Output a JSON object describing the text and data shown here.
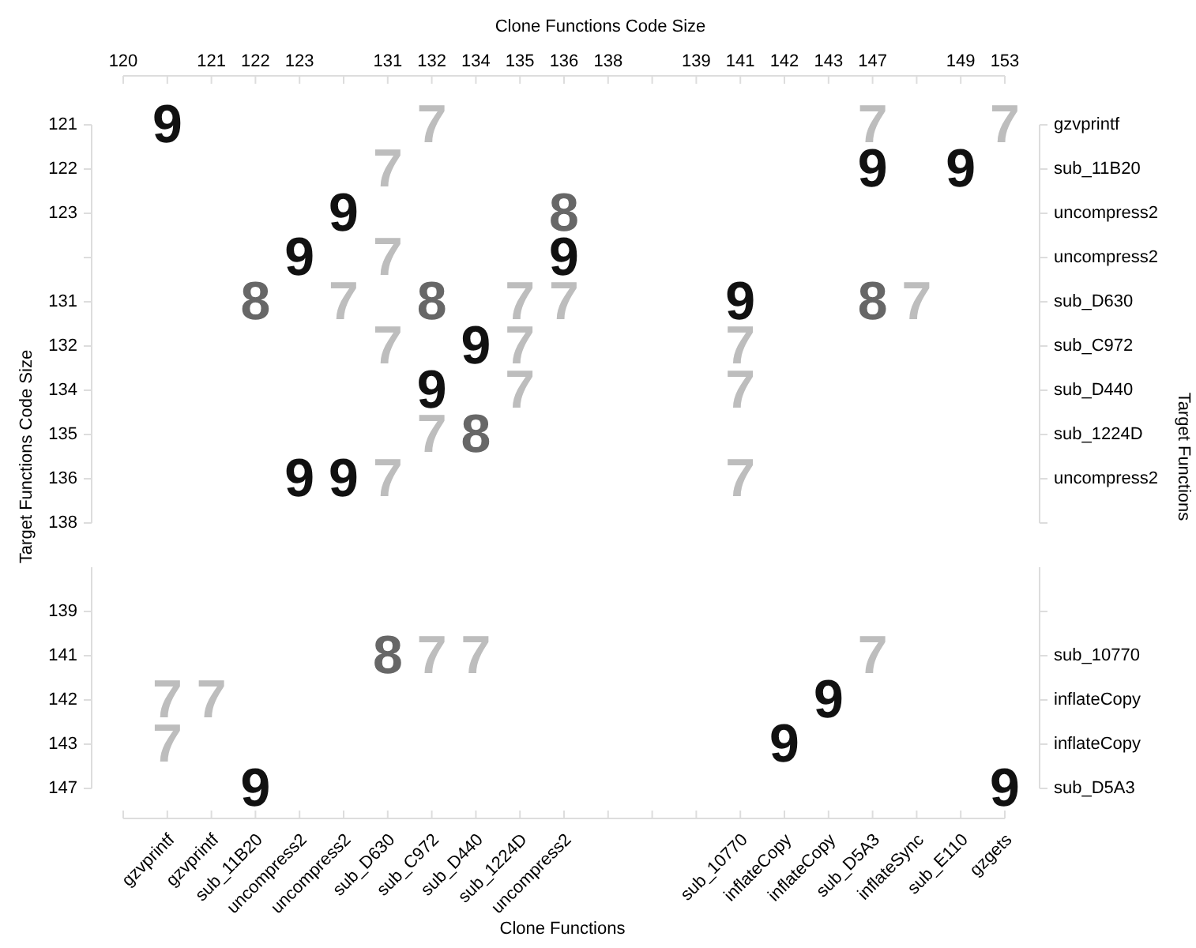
{
  "chart_data": [
    {
      "type": "heatmap",
      "xlabel": "Clone Functions Code Size",
      "ylabel": "Target Functions Code Size",
      "y2label": "Target Functions",
      "data_labels": true,
      "categories": [
        "120",
        null,
        "121",
        "122",
        "123",
        null,
        "131",
        "132",
        "134",
        "135",
        "136",
        "138",
        null,
        "139",
        "141",
        "142",
        "143",
        "147",
        null,
        "149",
        "153"
      ],
      "y_categories": [
        "121",
        "122",
        "123",
        null,
        "131",
        "132",
        "134",
        "135",
        "136",
        "138"
      ],
      "y2_categories": [
        "gzvprintf",
        "sub_11B20",
        "uncompress2",
        "uncompress2",
        "sub_D630",
        "sub_C972",
        "sub_D440",
        "sub_1224D",
        "uncompress2",
        null
      ],
      "cells": [
        [
          null,
          9,
          null,
          null,
          null,
          null,
          null,
          7,
          null,
          null,
          null,
          null,
          null,
          null,
          null,
          null,
          null,
          7,
          null,
          null,
          7
        ],
        [
          null,
          null,
          null,
          null,
          null,
          null,
          7,
          null,
          null,
          null,
          null,
          null,
          null,
          null,
          null,
          null,
          null,
          9,
          null,
          9,
          null
        ],
        [
          null,
          null,
          null,
          null,
          null,
          9,
          null,
          null,
          null,
          null,
          8,
          null,
          null,
          null,
          null,
          null,
          null,
          null,
          null,
          null,
          null
        ],
        [
          null,
          null,
          null,
          null,
          9,
          null,
          7,
          null,
          null,
          null,
          9,
          null,
          null,
          null,
          null,
          null,
          null,
          null,
          null,
          null,
          null
        ],
        [
          null,
          null,
          null,
          8,
          null,
          7,
          null,
          8,
          null,
          7,
          7,
          null,
          null,
          null,
          9,
          null,
          null,
          8,
          7,
          null,
          null
        ],
        [
          null,
          null,
          null,
          null,
          null,
          null,
          7,
          null,
          9,
          7,
          null,
          null,
          null,
          null,
          7,
          null,
          null,
          null,
          null,
          null,
          null
        ],
        [
          null,
          null,
          null,
          null,
          null,
          null,
          null,
          9,
          null,
          7,
          null,
          null,
          null,
          null,
          7,
          null,
          null,
          null,
          null,
          null,
          null
        ],
        [
          null,
          null,
          null,
          null,
          null,
          null,
          null,
          7,
          8,
          null,
          null,
          null,
          null,
          null,
          null,
          null,
          null,
          null,
          null,
          null,
          null
        ],
        [
          null,
          null,
          null,
          null,
          9,
          9,
          7,
          null,
          null,
          null,
          null,
          null,
          null,
          null,
          7,
          null,
          null,
          null,
          null,
          null,
          null
        ],
        [
          null,
          null,
          null,
          null,
          null,
          null,
          null,
          null,
          null,
          null,
          null,
          null,
          null,
          null,
          null,
          null,
          null,
          null,
          null,
          null,
          null
        ]
      ]
    },
    {
      "type": "heatmap",
      "xlabel": "Clone Functions",
      "data_labels": true,
      "categories": [
        null,
        "gzvprintf",
        "gzvprintf",
        "sub_11B20",
        "uncompress2",
        "uncompress2",
        "sub_D630",
        "sub_C972",
        "sub_D440",
        "sub_1224D",
        "uncompress2",
        null,
        null,
        null,
        "sub_10770",
        "inflateCopy",
        "inflateCopy",
        "sub_D5A3",
        "inflateSync",
        "sub_E110",
        "gzgets"
      ],
      "y_categories": [
        "139",
        "141",
        "142",
        "143",
        "147"
      ],
      "y2_categories": [
        null,
        "sub_10770",
        "inflateCopy",
        "inflateCopy",
        "sub_D5A3"
      ],
      "cells": [
        [
          null,
          null,
          null,
          null,
          null,
          null,
          null,
          null,
          null,
          null,
          null,
          null,
          null,
          null,
          null,
          null,
          null,
          null,
          null,
          null,
          null
        ],
        [
          null,
          null,
          null,
          null,
          null,
          null,
          8,
          7,
          7,
          null,
          null,
          null,
          null,
          null,
          null,
          null,
          null,
          7,
          null,
          null,
          null
        ],
        [
          null,
          7,
          7,
          null,
          null,
          null,
          null,
          null,
          null,
          null,
          null,
          null,
          null,
          null,
          null,
          null,
          9,
          null,
          null,
          null,
          null
        ],
        [
          null,
          7,
          null,
          null,
          null,
          null,
          null,
          null,
          null,
          null,
          null,
          null,
          null,
          null,
          null,
          9,
          null,
          null,
          null,
          null,
          null
        ],
        [
          null,
          null,
          null,
          9,
          null,
          null,
          null,
          null,
          null,
          null,
          null,
          null,
          null,
          null,
          null,
          null,
          null,
          null,
          null,
          null,
          9
        ]
      ]
    }
  ]
}
